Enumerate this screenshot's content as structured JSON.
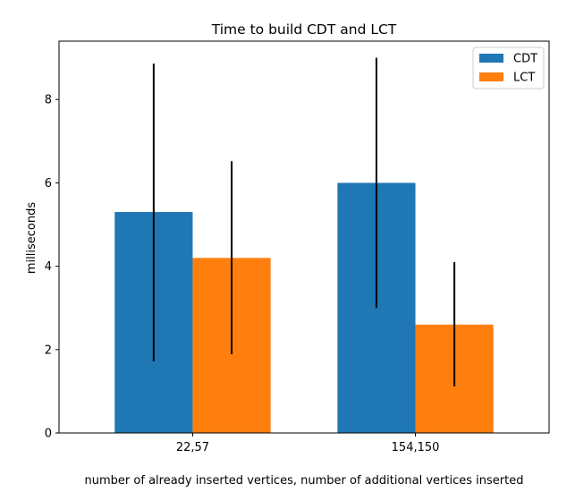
{
  "chart_data": {
    "type": "bar",
    "title": "Time to build CDT and LCT",
    "xlabel": "number of already inserted vertices, number of additional vertices inserted",
    "ylabel": "milliseconds",
    "categories": [
      "22,57",
      "154,150"
    ],
    "series": [
      {
        "name": "CDT",
        "color": "#1f77b4",
        "values": [
          5.3,
          6.0
        ],
        "error_low": [
          1.72,
          3.0
        ],
        "error_high": [
          8.86,
          9.0
        ]
      },
      {
        "name": "LCT",
        "color": "#ff7f0e",
        "values": [
          4.2,
          2.6
        ],
        "error_low": [
          1.89,
          1.12
        ],
        "error_high": [
          6.52,
          4.1
        ]
      }
    ],
    "ylim": [
      0,
      9.4
    ],
    "yticks": [
      0,
      2,
      4,
      6,
      8
    ],
    "grid": false,
    "legend": "top-right"
  }
}
